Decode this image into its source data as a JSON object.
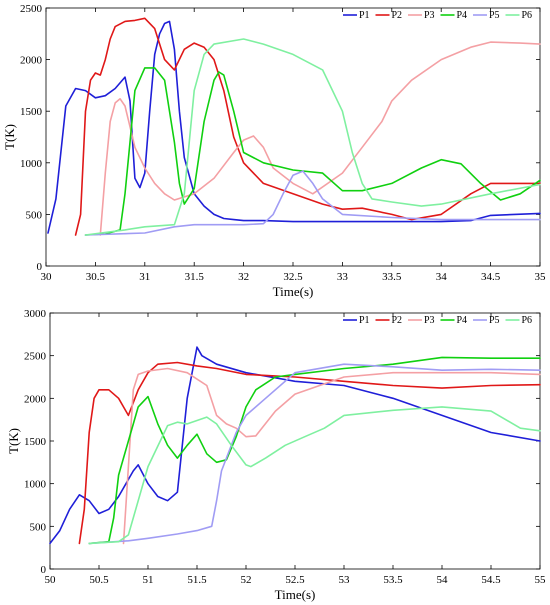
{
  "chart_data": [
    {
      "type": "line",
      "title": "",
      "xlabel": "Time(s)",
      "ylabel": "T(K)",
      "xlim": [
        30,
        35
      ],
      "ylim": [
        0,
        2500
      ],
      "xticks": [
        30,
        30.5,
        31,
        31.5,
        32,
        32.5,
        33,
        33.5,
        34,
        34.5,
        35
      ],
      "yticks": [
        0,
        500,
        1000,
        1500,
        2000,
        2500
      ],
      "legend_position": "top-right",
      "grid": false,
      "series": [
        {
          "name": "P1",
          "color": "#1f1fd8",
          "x": [
            30.02,
            30.1,
            30.2,
            30.3,
            30.4,
            30.5,
            30.6,
            30.7,
            30.8,
            30.85,
            30.9,
            30.95,
            31.0,
            31.05,
            31.1,
            31.15,
            31.2,
            31.25,
            31.3,
            31.35,
            31.4,
            31.5,
            31.6,
            31.7,
            31.8,
            31.9,
            32.0,
            32.2,
            32.5,
            33.0,
            33.5,
            34.0,
            34.3,
            34.5,
            35.0
          ],
          "y": [
            320,
            650,
            1550,
            1720,
            1700,
            1630,
            1650,
            1720,
            1830,
            1600,
            850,
            760,
            900,
            1500,
            2050,
            2250,
            2350,
            2370,
            2100,
            1500,
            1050,
            700,
            580,
            500,
            460,
            450,
            440,
            440,
            430,
            430,
            430,
            430,
            440,
            490,
            510
          ]
        },
        {
          "name": "P2",
          "color": "#e01818",
          "x": [
            30.3,
            30.35,
            30.4,
            30.45,
            30.5,
            30.55,
            30.6,
            30.65,
            30.7,
            30.8,
            30.9,
            31.0,
            31.1,
            31.2,
            31.3,
            31.4,
            31.5,
            31.6,
            31.7,
            31.8,
            31.9,
            32.0,
            32.2,
            32.5,
            32.8,
            33.0,
            33.2,
            33.5,
            33.7,
            34.0,
            34.3,
            34.5,
            35.0
          ],
          "y": [
            300,
            500,
            1500,
            1800,
            1870,
            1850,
            2000,
            2200,
            2320,
            2370,
            2380,
            2400,
            2300,
            2000,
            1900,
            2100,
            2160,
            2120,
            2000,
            1700,
            1250,
            1000,
            800,
            700,
            600,
            550,
            560,
            500,
            450,
            500,
            700,
            800,
            800
          ]
        },
        {
          "name": "P3",
          "color": "#f4a0a4",
          "x": [
            30.55,
            30.6,
            30.65,
            30.7,
            30.75,
            30.8,
            30.85,
            30.9,
            31.0,
            31.1,
            31.2,
            31.3,
            31.5,
            31.7,
            31.9,
            32.0,
            32.1,
            32.2,
            32.3,
            32.5,
            32.7,
            33.0,
            33.2,
            33.4,
            33.5,
            33.7,
            34.0,
            34.3,
            34.5,
            34.8,
            35.0
          ],
          "y": [
            300,
            900,
            1400,
            1580,
            1620,
            1550,
            1350,
            1150,
            950,
            800,
            700,
            640,
            700,
            850,
            1100,
            1220,
            1260,
            1150,
            950,
            800,
            700,
            900,
            1150,
            1400,
            1600,
            1800,
            2000,
            2120,
            2170,
            2160,
            2150
          ]
        },
        {
          "name": "P4",
          "color": "#10d010",
          "x": [
            30.4,
            30.6,
            30.75,
            30.8,
            30.85,
            30.9,
            31.0,
            31.1,
            31.2,
            31.3,
            31.35,
            31.4,
            31.5,
            31.6,
            31.7,
            31.75,
            31.8,
            31.9,
            32.0,
            32.2,
            32.5,
            32.8,
            33.0,
            33.2,
            33.5,
            33.8,
            34.0,
            34.2,
            34.4,
            34.6,
            34.8,
            35.0
          ],
          "y": [
            300,
            310,
            350,
            700,
            1200,
            1700,
            1920,
            1920,
            1800,
            1200,
            800,
            600,
            750,
            1400,
            1800,
            1880,
            1850,
            1500,
            1100,
            1000,
            930,
            900,
            730,
            730,
            800,
            950,
            1030,
            990,
            800,
            640,
            700,
            830
          ]
        },
        {
          "name": "P5",
          "color": "#a09cf4",
          "x": [
            30.4,
            31.0,
            31.3,
            31.5,
            32.0,
            32.2,
            32.3,
            32.4,
            32.5,
            32.6,
            32.7,
            32.8,
            33.0,
            33.5,
            34.0,
            34.5,
            35.0
          ],
          "y": [
            300,
            320,
            380,
            400,
            400,
            410,
            500,
            700,
            880,
            920,
            800,
            650,
            500,
            470,
            450,
            450,
            450
          ]
        },
        {
          "name": "P6",
          "color": "#7ff0a0",
          "x": [
            30.4,
            30.8,
            31.0,
            31.3,
            31.4,
            31.5,
            31.6,
            31.7,
            32.0,
            32.2,
            32.5,
            32.8,
            33.0,
            33.1,
            33.2,
            33.3,
            33.5,
            33.8,
            34.0,
            34.5,
            35.0
          ],
          "y": [
            300,
            350,
            380,
            400,
            700,
            1700,
            2050,
            2150,
            2200,
            2150,
            2050,
            1900,
            1500,
            1100,
            800,
            650,
            620,
            580,
            600,
            700,
            790
          ]
        }
      ]
    },
    {
      "type": "line",
      "title": "",
      "xlabel": "Time(s)",
      "ylabel": "T(K)",
      "xlim": [
        50,
        55
      ],
      "ylim": [
        0,
        3000
      ],
      "xticks": [
        50,
        50.5,
        51,
        51.5,
        52,
        52.5,
        53,
        53.5,
        54,
        54.5,
        55
      ],
      "yticks": [
        0,
        500,
        1000,
        1500,
        2000,
        2500,
        3000
      ],
      "legend_position": "top-right",
      "grid": false,
      "series": [
        {
          "name": "P1",
          "color": "#1f1fd8",
          "x": [
            50.0,
            50.1,
            50.2,
            50.3,
            50.4,
            50.5,
            50.6,
            50.7,
            50.8,
            50.85,
            50.9,
            51.0,
            51.1,
            51.2,
            51.3,
            51.4,
            51.5,
            51.55,
            51.7,
            52.0,
            52.5,
            53.0,
            53.5,
            54.0,
            54.5,
            55.0
          ],
          "y": [
            300,
            450,
            700,
            870,
            800,
            650,
            700,
            850,
            1050,
            1150,
            1220,
            1000,
            850,
            800,
            900,
            2000,
            2600,
            2500,
            2400,
            2300,
            2200,
            2150,
            2000,
            1800,
            1600,
            1500
          ]
        },
        {
          "name": "P2",
          "color": "#e01818",
          "x": [
            50.3,
            50.35,
            50.4,
            50.45,
            50.5,
            50.6,
            50.7,
            50.75,
            50.8,
            50.9,
            51.0,
            51.1,
            51.3,
            51.5,
            51.7,
            52.0,
            52.5,
            53.0,
            53.5,
            54.0,
            54.5,
            55.0
          ],
          "y": [
            300,
            700,
            1600,
            2000,
            2100,
            2100,
            2000,
            1900,
            1800,
            2100,
            2300,
            2400,
            2420,
            2380,
            2350,
            2280,
            2250,
            2200,
            2150,
            2120,
            2150,
            2160
          ]
        },
        {
          "name": "P3",
          "color": "#f4a0a4",
          "x": [
            50.75,
            50.8,
            50.85,
            50.9,
            51.0,
            51.2,
            51.4,
            51.6,
            51.7,
            51.8,
            51.9,
            52.0,
            52.1,
            52.3,
            52.5,
            53.0,
            53.5,
            54.0,
            54.5,
            55.0
          ],
          "y": [
            300,
            1200,
            2100,
            2280,
            2320,
            2350,
            2300,
            2150,
            1800,
            1700,
            1650,
            1550,
            1560,
            1850,
            2050,
            2250,
            2300,
            2300,
            2300,
            2280
          ]
        },
        {
          "name": "P4",
          "color": "#10d010",
          "x": [
            50.4,
            50.6,
            50.65,
            50.7,
            50.8,
            50.9,
            51.0,
            51.1,
            51.2,
            51.3,
            51.4,
            51.5,
            51.6,
            51.7,
            51.8,
            51.9,
            52.0,
            52.1,
            52.3,
            52.5,
            53.0,
            53.5,
            54.0,
            54.5,
            55.0
          ],
          "y": [
            300,
            320,
            600,
            1100,
            1500,
            1900,
            2020,
            1700,
            1450,
            1300,
            1450,
            1580,
            1350,
            1250,
            1280,
            1550,
            1900,
            2100,
            2250,
            2280,
            2350,
            2400,
            2480,
            2470,
            2470
          ]
        },
        {
          "name": "P5",
          "color": "#a09cf4",
          "x": [
            50.4,
            50.8,
            51.0,
            51.3,
            51.5,
            51.65,
            51.7,
            51.75,
            51.8,
            51.9,
            52.0,
            52.2,
            52.5,
            53.0,
            53.5,
            54.0,
            54.5,
            55.0
          ],
          "y": [
            300,
            330,
            360,
            410,
            450,
            500,
            800,
            1150,
            1300,
            1600,
            1800,
            2000,
            2300,
            2400,
            2370,
            2330,
            2340,
            2330
          ]
        },
        {
          "name": "P6",
          "color": "#7ff0a0",
          "x": [
            50.4,
            50.7,
            50.8,
            51.0,
            51.2,
            51.3,
            51.4,
            51.6,
            51.7,
            51.85,
            52.0,
            52.05,
            52.2,
            52.4,
            52.6,
            52.8,
            53.0,
            53.5,
            54.0,
            54.5,
            54.8,
            55.0
          ],
          "y": [
            300,
            320,
            400,
            1200,
            1680,
            1720,
            1700,
            1780,
            1700,
            1450,
            1220,
            1200,
            1300,
            1450,
            1550,
            1650,
            1800,
            1860,
            1900,
            1850,
            1650,
            1620
          ]
        }
      ]
    }
  ]
}
